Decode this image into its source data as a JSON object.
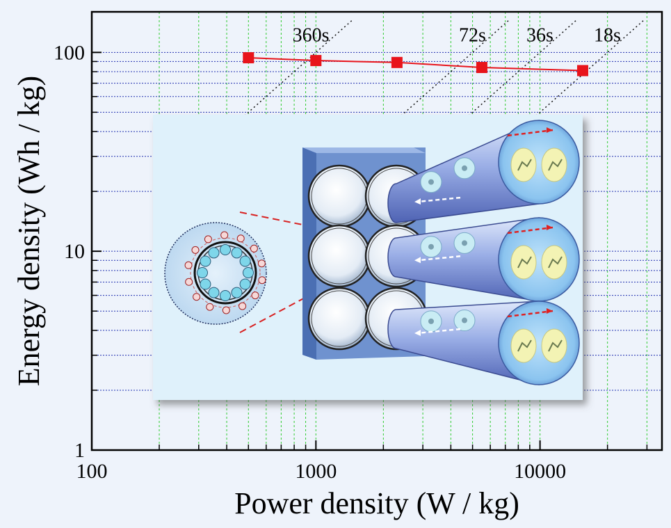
{
  "chart_data": {
    "type": "line",
    "xlabel": "Power density (W / kg)",
    "ylabel": "Energy density (Wh / kg)",
    "x_scale": "log",
    "y_scale": "log",
    "xlim": [
      100,
      35000
    ],
    "ylim": [
      1,
      160
    ],
    "x_tick_labels": [
      "100",
      "1000",
      "10000"
    ],
    "y_tick_labels": [
      "1",
      "10",
      "100"
    ],
    "grid": true,
    "series": [
      {
        "x": [
          500,
          1000,
          2300,
          5500,
          15500
        ],
        "y": [
          94,
          91,
          89,
          84,
          81
        ],
        "color": "#e8141b",
        "marker": "square"
      }
    ],
    "annotations": [
      {
        "text": "360s",
        "discharge_time_s": 360
      },
      {
        "text": "72s",
        "discharge_time_s": 72
      },
      {
        "text": "36s",
        "discharge_time_s": 36
      },
      {
        "text": "18s",
        "discharge_time_s": 18
      }
    ],
    "colors": {
      "x_grid": "#2ecb2e",
      "y_grid": "#2030b0",
      "series": "#e8141b",
      "inset_bg": "#dff1fb",
      "inset_panel": "#6f92cf"
    }
  }
}
